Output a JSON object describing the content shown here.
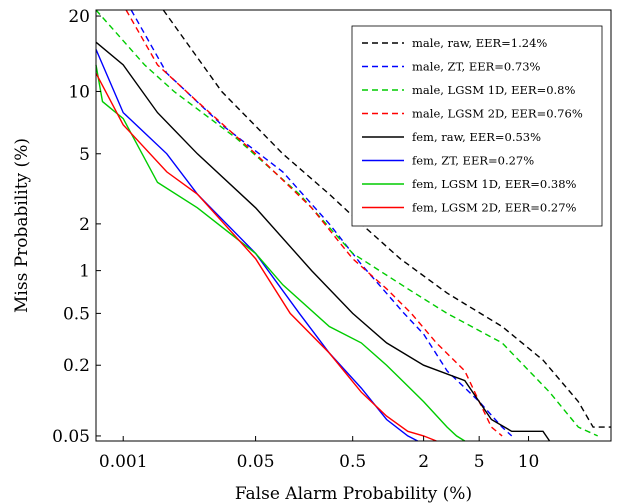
{
  "chart_data": {
    "type": "line",
    "title": "",
    "xlabel": "False Alarm Probability (%)",
    "ylabel": "Miss Probability (%)",
    "xscale": "probit",
    "yscale": "probit",
    "xlim": [
      0.0004,
      25
    ],
    "ylim": [
      0.045,
      21
    ],
    "xticks": [
      {
        "v": 0.001,
        "label": "0.001"
      },
      {
        "v": 0.05,
        "label": "0.05"
      },
      {
        "v": 0.5,
        "label": "0.5"
      },
      {
        "v": 2,
        "label": "2"
      },
      {
        "v": 5,
        "label": "5"
      },
      {
        "v": 10,
        "label": "10"
      }
    ],
    "yticks": [
      {
        "v": 20,
        "label": "20"
      },
      {
        "v": 10,
        "label": "10"
      },
      {
        "v": 5,
        "label": "5"
      },
      {
        "v": 2,
        "label": "2"
      },
      {
        "v": 1,
        "label": "1"
      },
      {
        "v": 0.5,
        "label": "0.5"
      },
      {
        "v": 0.2,
        "label": "0.2"
      },
      {
        "v": 0.05,
        "label": "0.05"
      }
    ],
    "grid": false,
    "legend_position": "top-right",
    "series": [
      {
        "name": "male, raw, EER=1.24%",
        "color": "#000000",
        "dash": true,
        "points": [
          [
            0.0036,
            21
          ],
          [
            0.02,
            10
          ],
          [
            0.1,
            5
          ],
          [
            0.3,
            3
          ],
          [
            0.6,
            2
          ],
          [
            1.3,
            1.2
          ],
          [
            3,
            0.7
          ],
          [
            7,
            0.4
          ],
          [
            12,
            0.22
          ],
          [
            18,
            0.1
          ],
          [
            21,
            0.06
          ],
          [
            25,
            0.06
          ]
        ]
      },
      {
        "name": "male, ZT, EER=0.73%",
        "color": "#0000ff",
        "dash": true,
        "points": [
          [
            0.0013,
            21
          ],
          [
            0.004,
            12
          ],
          [
            0.02,
            7
          ],
          [
            0.1,
            4
          ],
          [
            0.3,
            2
          ],
          [
            0.6,
            1.1
          ],
          [
            1.4,
            0.5
          ],
          [
            2,
            0.35
          ],
          [
            3,
            0.18
          ],
          [
            5,
            0.1
          ],
          [
            7,
            0.06
          ],
          [
            8,
            0.05
          ]
        ]
      },
      {
        "name": "male, LGSM 1D, EER=0.8%",
        "color": "#00cc00",
        "dash": true,
        "points": [
          [
            0.0004,
            21
          ],
          [
            0.002,
            13
          ],
          [
            0.005,
            10
          ],
          [
            0.03,
            6
          ],
          [
            0.15,
            3
          ],
          [
            0.5,
            1.3
          ],
          [
            1.5,
            0.75
          ],
          [
            3,
            0.5
          ],
          [
            7,
            0.3
          ],
          [
            13,
            0.12
          ],
          [
            18,
            0.06
          ],
          [
            22,
            0.05
          ]
        ]
      },
      {
        "name": "male, LGSM 2D, EER=0.76%",
        "color": "#ff0000",
        "dash": true,
        "points": [
          [
            0.0011,
            21
          ],
          [
            0.003,
            13
          ],
          [
            0.01,
            9
          ],
          [
            0.05,
            5
          ],
          [
            0.2,
            2.5
          ],
          [
            0.5,
            1.2
          ],
          [
            1,
            0.75
          ],
          [
            1.6,
            0.5
          ],
          [
            2.5,
            0.3
          ],
          [
            4,
            0.18
          ],
          [
            5,
            0.1
          ],
          [
            6,
            0.06
          ],
          [
            7,
            0.05
          ]
        ]
      },
      {
        "name": "fem, raw, EER=0.53%",
        "color": "#000000",
        "dash": false,
        "points": [
          [
            0.0004,
            16
          ],
          [
            0.001,
            13
          ],
          [
            0.003,
            8
          ],
          [
            0.01,
            5
          ],
          [
            0.05,
            2.5
          ],
          [
            0.2,
            1
          ],
          [
            0.5,
            0.5
          ],
          [
            1,
            0.3
          ],
          [
            2,
            0.2
          ],
          [
            4,
            0.15
          ],
          [
            6,
            0.07
          ],
          [
            8,
            0.055
          ],
          [
            12,
            0.055
          ],
          [
            13,
            0.045
          ]
        ]
      },
      {
        "name": "fem, ZT, EER=0.27%",
        "color": "#0000ff",
        "dash": false,
        "points": [
          [
            0.0004,
            15
          ],
          [
            0.001,
            8
          ],
          [
            0.004,
            5
          ],
          [
            0.01,
            3
          ],
          [
            0.05,
            1.3
          ],
          [
            0.15,
            0.5
          ],
          [
            0.3,
            0.25
          ],
          [
            0.6,
            0.13
          ],
          [
            1,
            0.07
          ],
          [
            1.5,
            0.05
          ],
          [
            1.8,
            0.045
          ]
        ]
      },
      {
        "name": "fem, LGSM 1D, EER=0.38%",
        "color": "#00cc00",
        "dash": false,
        "points": [
          [
            0.0004,
            13
          ],
          [
            0.0005,
            9
          ],
          [
            0.001,
            7.5
          ],
          [
            0.003,
            3.5
          ],
          [
            0.01,
            2.5
          ],
          [
            0.05,
            1.3
          ],
          [
            0.1,
            0.8
          ],
          [
            0.3,
            0.4
          ],
          [
            0.6,
            0.3
          ],
          [
            1,
            0.2
          ],
          [
            2,
            0.1
          ],
          [
            3,
            0.06
          ],
          [
            3.5,
            0.05
          ],
          [
            4,
            0.045
          ]
        ]
      },
      {
        "name": "fem, LGSM 2D, EER=0.27%",
        "color": "#ff0000",
        "dash": false,
        "points": [
          [
            0.0004,
            12
          ],
          [
            0.001,
            7
          ],
          [
            0.004,
            4
          ],
          [
            0.01,
            3
          ],
          [
            0.05,
            1.2
          ],
          [
            0.12,
            0.5
          ],
          [
            0.3,
            0.25
          ],
          [
            0.6,
            0.12
          ],
          [
            1,
            0.075
          ],
          [
            1.5,
            0.055
          ],
          [
            2,
            0.05
          ],
          [
            2.5,
            0.045
          ]
        ]
      }
    ]
  }
}
